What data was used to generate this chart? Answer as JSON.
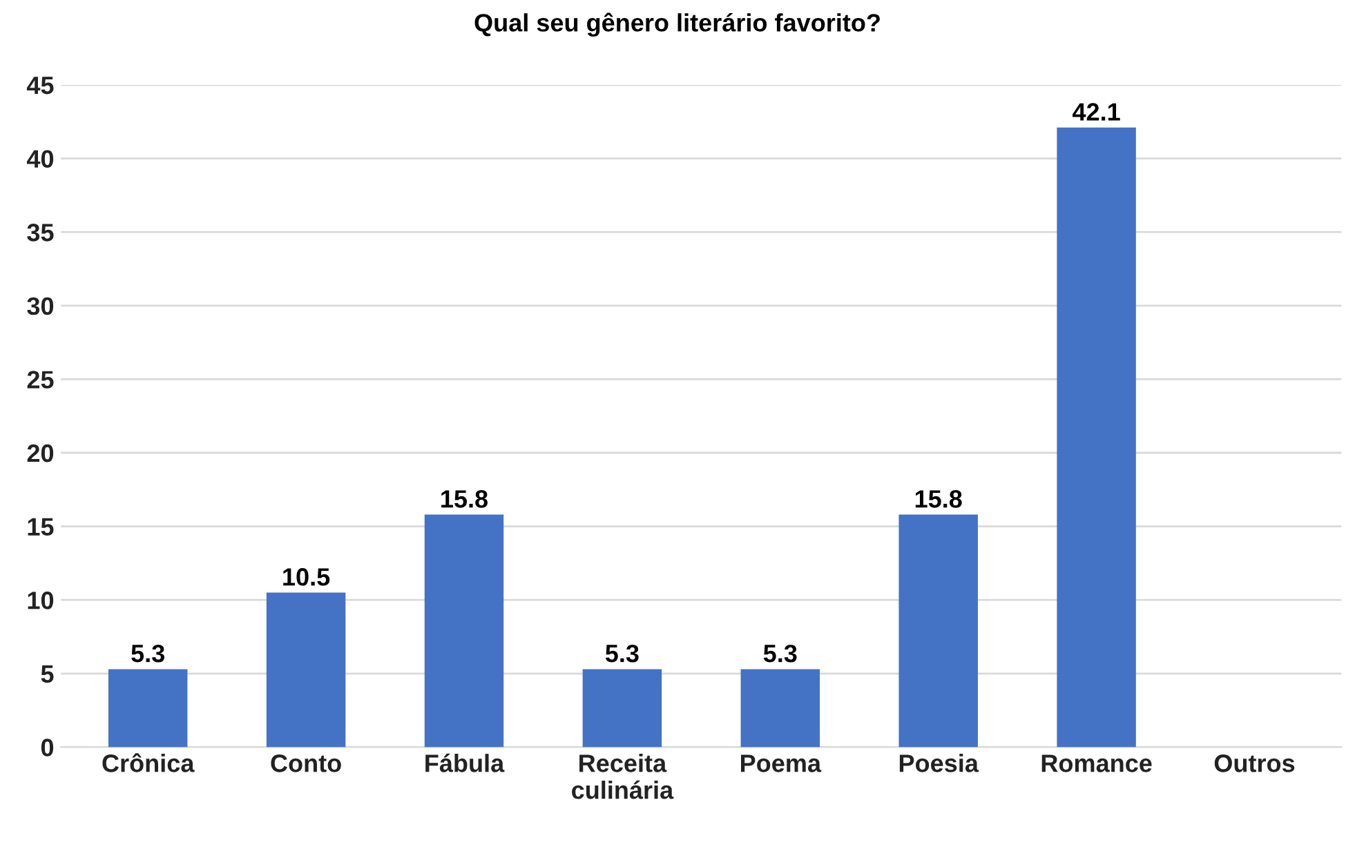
{
  "chart_data": {
    "type": "bar",
    "title": "Qual seu gênero literário favorito?",
    "categories": [
      "Crônica",
      "Conto",
      "Fábula",
      "Receita\nculinária",
      "Poema",
      "Poesia",
      "Romance",
      "Outros"
    ],
    "values": [
      5.3,
      10.5,
      15.8,
      5.3,
      5.3,
      15.8,
      42.1,
      null
    ],
    "color": "#4472c4",
    "ylim": [
      0,
      45
    ],
    "yticks": [
      0,
      5,
      10,
      15,
      20,
      25,
      30,
      35,
      40,
      45
    ],
    "grid": "y",
    "data_labels": true,
    "legend": false
  }
}
